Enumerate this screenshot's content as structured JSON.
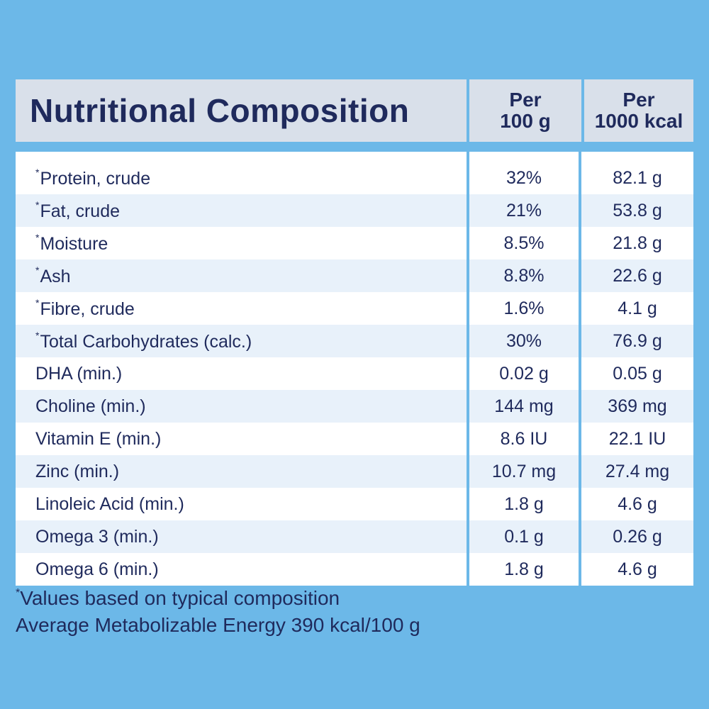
{
  "header": {
    "title": "Nutritional Composition",
    "col1_line1": "Per",
    "col1_line2": "100 g",
    "col2_line1": "Per",
    "col2_line2": "1000 kcal"
  },
  "rows": [
    {
      "asterisk": "*",
      "label": "Protein, crude",
      "per100g": "32%",
      "per1000kcal": "82.1 g"
    },
    {
      "asterisk": "*",
      "label": "Fat, crude",
      "per100g": "21%",
      "per1000kcal": "53.8 g"
    },
    {
      "asterisk": "*",
      "label": "Moisture",
      "per100g": "8.5%",
      "per1000kcal": "21.8 g"
    },
    {
      "asterisk": "*",
      "label": "Ash",
      "per100g": "8.8%",
      "per1000kcal": "22.6 g"
    },
    {
      "asterisk": "*",
      "label": "Fibre, crude",
      "per100g": "1.6%",
      "per1000kcal": "4.1 g"
    },
    {
      "asterisk": "*",
      "label": "Total Carbohydrates (calc.)",
      "per100g": "30%",
      "per1000kcal": "76.9 g"
    },
    {
      "asterisk": "",
      "label": "DHA (min.)",
      "per100g": "0.02 g",
      "per1000kcal": "0.05 g"
    },
    {
      "asterisk": "",
      "label": "Choline (min.)",
      "per100g": "144 mg",
      "per1000kcal": "369 mg"
    },
    {
      "asterisk": "",
      "label": "Vitamin E (min.)",
      "per100g": "8.6 IU",
      "per1000kcal": "22.1 IU"
    },
    {
      "asterisk": "",
      "label": "Zinc (min.)",
      "per100g": "10.7 mg",
      "per1000kcal": "27.4 mg"
    },
    {
      "asterisk": "",
      "label": "Linoleic Acid (min.)",
      "per100g": "1.8 g",
      "per1000kcal": "4.6 g"
    },
    {
      "asterisk": "",
      "label": "Omega 3 (min.)",
      "per100g": "0.1 g",
      "per1000kcal": "0.26 g"
    },
    {
      "asterisk": "",
      "label": "Omega 6 (min.)",
      "per100g": "1.8 g",
      "per1000kcal": "4.6 g"
    }
  ],
  "footnote": {
    "asterisk": "*",
    "line1": "Values based on typical composition",
    "line2": "Average Metabolizable Energy 390 kcal/100 g"
  },
  "colors": {
    "background": "#6cb8e8",
    "header_bg": "#d9e0ea",
    "text": "#1f2a5c",
    "row_alt": "#e8f1fa"
  }
}
